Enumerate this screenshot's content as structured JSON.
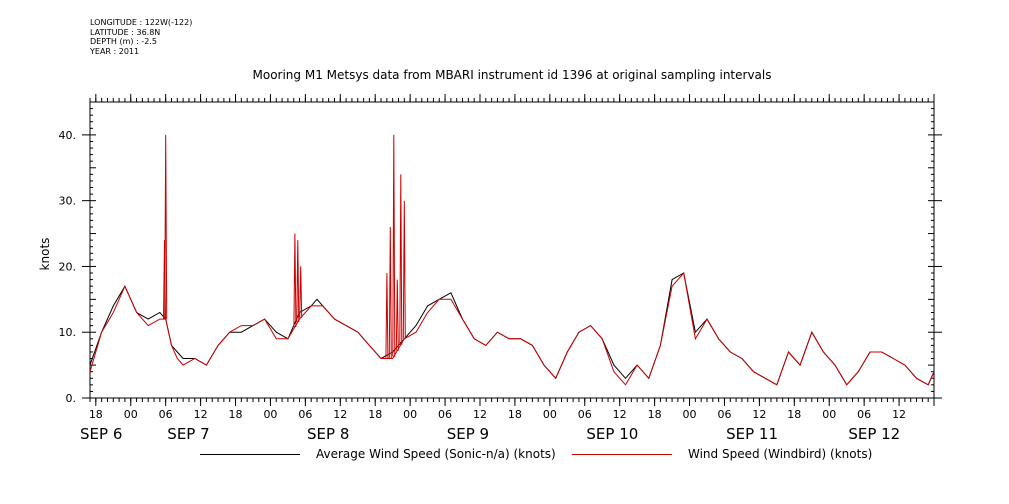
{
  "meta": {
    "longitude": "LONGITUDE : 122W(-122)",
    "latitude": "LATITUDE : 36.8N",
    "depth": "DEPTH (m) : -2.5",
    "year": "YEAR : 2011"
  },
  "chart_data": {
    "type": "line",
    "title": "Mooring M1 Metsys data from MBARI instrument id 1396 at original sampling intervals",
    "ylabel": "knots",
    "xlabel": "",
    "ylim": [
      0,
      45
    ],
    "yticks": [
      0,
      10,
      20,
      30,
      40
    ],
    "ytick_labels": [
      "0.",
      "10.",
      "20.",
      "30.",
      "40."
    ],
    "xlim_hours": [
      0,
      145
    ],
    "xtick_hours": [
      1,
      7,
      13,
      19,
      25,
      31,
      37,
      43,
      49,
      55,
      61,
      67,
      73,
      79,
      85,
      91,
      97,
      103,
      109,
      115,
      121,
      127,
      133,
      139,
      145
    ],
    "xtick_labels": [
      "18",
      "00",
      "06",
      "12",
      "18",
      "00",
      "06",
      "12",
      "18",
      "00",
      "06",
      "12",
      "18",
      "00",
      "06",
      "12",
      "18",
      "00",
      "06",
      "12",
      "18",
      "00",
      "06",
      "12",
      ""
    ],
    "date_labels": [
      {
        "hour": 0,
        "label": "SEP  6"
      },
      {
        "hour": 15,
        "label": "SEP  7"
      },
      {
        "hour": 39,
        "label": "SEP  8"
      },
      {
        "hour": 63,
        "label": "SEP  9"
      },
      {
        "hour": 87,
        "label": "SEP 10"
      },
      {
        "hour": 111,
        "label": "SEP 11"
      },
      {
        "hour": 132,
        "label": "SEP 12"
      }
    ],
    "x_hours": [
      0,
      2,
      4,
      6,
      8,
      10,
      12,
      13,
      14,
      15,
      16,
      18,
      20,
      22,
      24,
      26,
      28,
      30,
      32,
      34,
      36,
      38,
      39,
      40,
      42,
      44,
      46,
      48,
      50,
      52,
      54,
      56,
      58,
      60,
      62,
      64,
      66,
      68,
      70,
      72,
      74,
      76,
      78,
      80,
      82,
      84,
      86,
      88,
      90,
      92,
      94,
      96,
      98,
      100,
      102,
      104,
      106,
      108,
      110,
      112,
      114,
      116,
      118,
      120,
      122,
      124,
      126,
      128,
      130,
      132,
      134,
      136,
      138,
      140,
      142,
      144,
      145
    ],
    "series": [
      {
        "name": "Average Wind Speed (Sonic-n/a) (knots)",
        "color": "#000000",
        "values": [
          5,
          10,
          14,
          17,
          13,
          12,
          13,
          12,
          8,
          7,
          6,
          6,
          5,
          8,
          10,
          10,
          11,
          12,
          10,
          9,
          13,
          14,
          15,
          14,
          12,
          11,
          10,
          8,
          6,
          7,
          9,
          11,
          14,
          15,
          16,
          12,
          9,
          8,
          10,
          9,
          9,
          8,
          5,
          3,
          7,
          10,
          11,
          9,
          5,
          3,
          5,
          3,
          8,
          18,
          19,
          10,
          12,
          9,
          7,
          6,
          4,
          3,
          2,
          7,
          5,
          10,
          7,
          5,
          2,
          4,
          7,
          7,
          6,
          5,
          3,
          2,
          4
        ]
      },
      {
        "name": "Wind Speed (Windbird) (knots)",
        "color": "#cc0000",
        "values": [
          4,
          10,
          13,
          17,
          13,
          11,
          12,
          12,
          8,
          6,
          5,
          6,
          5,
          8,
          10,
          11,
          11,
          12,
          9,
          9,
          12,
          14,
          14,
          14,
          12,
          11,
          10,
          8,
          6,
          6,
          9,
          10,
          13,
          15,
          15,
          12,
          9,
          8,
          10,
          9,
          9,
          8,
          5,
          3,
          7,
          10,
          11,
          9,
          4,
          2,
          5,
          3,
          8,
          17,
          19,
          9,
          12,
          9,
          7,
          6,
          4,
          3,
          2,
          7,
          5,
          10,
          7,
          5,
          2,
          4,
          7,
          7,
          6,
          5,
          3,
          2,
          4
        ],
        "spikes": [
          {
            "hour": 13.0,
            "value": 40
          },
          {
            "hour": 12.8,
            "value": 24
          },
          {
            "hour": 35.2,
            "value": 25
          },
          {
            "hour": 35.7,
            "value": 24
          },
          {
            "hour": 36.2,
            "value": 20
          },
          {
            "hour": 51.0,
            "value": 19
          },
          {
            "hour": 51.6,
            "value": 26
          },
          {
            "hour": 52.2,
            "value": 40
          },
          {
            "hour": 52.8,
            "value": 18
          },
          {
            "hour": 53.4,
            "value": 34
          },
          {
            "hour": 54.0,
            "value": 30
          }
        ]
      }
    ],
    "legend_position": "bottom"
  }
}
